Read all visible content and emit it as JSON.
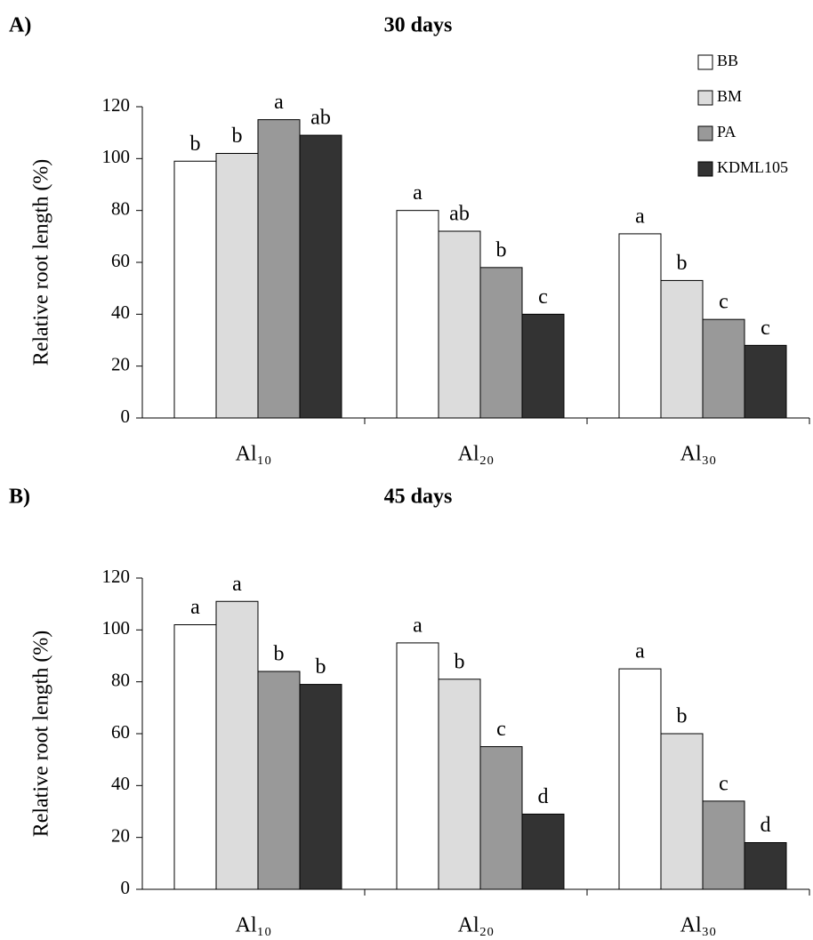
{
  "chart_data": [
    {
      "type": "bar",
      "panel": "A)",
      "title": "30 days",
      "y_label": "Relative root length (%)",
      "categories": [
        "Al₁₀",
        "Al₂₀",
        "Al₃₀"
      ],
      "series": [
        {
          "name": "BB",
          "color": "#ffffff",
          "values": [
            99,
            80,
            71
          ],
          "letters": [
            "b",
            "a",
            "a"
          ]
        },
        {
          "name": "BM",
          "color": "#dcdcdc",
          "values": [
            102,
            72,
            53
          ],
          "letters": [
            "b",
            "ab",
            "b"
          ]
        },
        {
          "name": "PA",
          "color": "#999999",
          "values": [
            115,
            58,
            38
          ],
          "letters": [
            "a",
            "b",
            "c"
          ]
        },
        {
          "name": "KDML105",
          "color": "#333333",
          "values": [
            109,
            40,
            28
          ],
          "letters": [
            "ab",
            "c",
            "c"
          ]
        }
      ],
      "ylim": [
        0,
        120
      ],
      "yticks": [
        0,
        20,
        40,
        60,
        80,
        100,
        120
      ],
      "legend": "top-right"
    },
    {
      "type": "bar",
      "panel": "B)",
      "title": "45 days",
      "y_label": "Relative root length (%)",
      "categories": [
        "Al₁₀",
        "Al₂₀",
        "Al₃₀"
      ],
      "series": [
        {
          "color": "#ffffff",
          "values": [
            102,
            95,
            85
          ],
          "letters": [
            "a",
            "a",
            "a"
          ]
        },
        {
          "color": "#dcdcdc",
          "values": [
            111,
            81,
            60
          ],
          "letters": [
            "a",
            "b",
            "b"
          ]
        },
        {
          "color": "#999999",
          "values": [
            84,
            55,
            34
          ],
          "letters": [
            "b",
            "c",
            "c"
          ]
        },
        {
          "color": "#333333",
          "values": [
            79,
            29,
            18
          ],
          "letters": [
            "b",
            "d",
            "d"
          ]
        }
      ],
      "ylim": [
        0,
        120
      ],
      "yticks": [
        0,
        20,
        40,
        60,
        80,
        100,
        120
      ]
    }
  ]
}
